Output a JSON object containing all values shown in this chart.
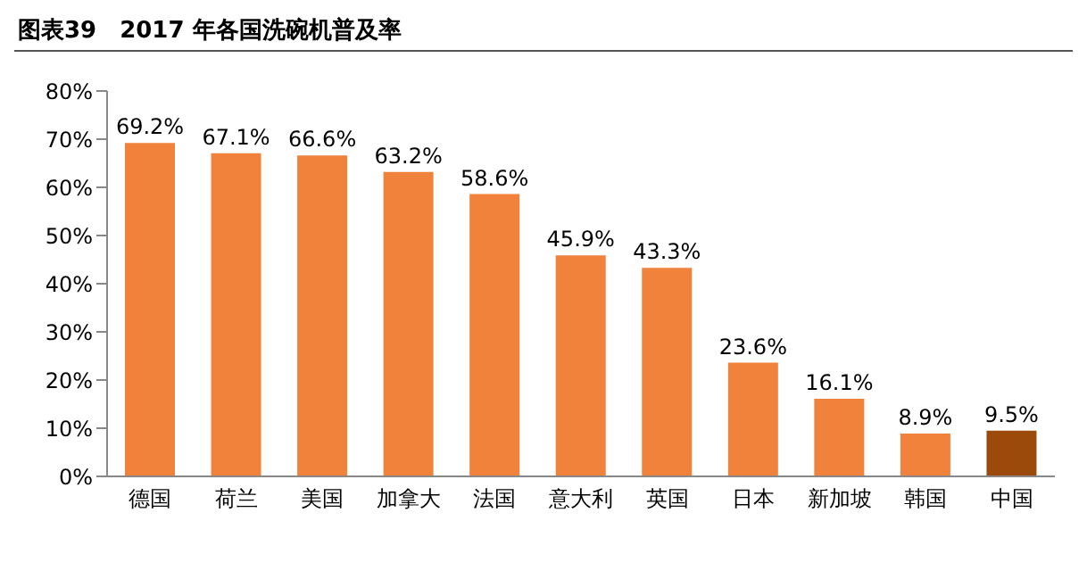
{
  "chart_data": {
    "type": "bar",
    "title": "图表39　2017 年各国洗碗机普及率",
    "categories": [
      "德国",
      "荷兰",
      "美国",
      "加拿大",
      "法国",
      "意大利",
      "英国",
      "日本",
      "新加坡",
      "韩国",
      "中国"
    ],
    "values": [
      69.2,
      67.1,
      66.6,
      63.2,
      58.6,
      45.9,
      43.3,
      23.6,
      16.1,
      8.9,
      9.5
    ],
    "colors": [
      "#f0823c",
      "#f0823c",
      "#f0823c",
      "#f0823c",
      "#f0823c",
      "#f0823c",
      "#f0823c",
      "#f0823c",
      "#f0823c",
      "#f0823c",
      "#9c4a0c"
    ],
    "value_labels": [
      "69.2%",
      "67.1%",
      "66.6%",
      "63.2%",
      "58.6%",
      "45.9%",
      "43.3%",
      "23.6%",
      "16.1%",
      "8.9%",
      "9.5%"
    ],
    "ylim": [
      0,
      80
    ],
    "yticks": [
      {
        "value": 0,
        "label": "0%"
      },
      {
        "value": 10,
        "label": "10%"
      },
      {
        "value": 20,
        "label": "20%"
      },
      {
        "value": 30,
        "label": "30%"
      },
      {
        "value": 40,
        "label": "40%"
      },
      {
        "value": 50,
        "label": "50%"
      },
      {
        "value": 60,
        "label": "60%"
      },
      {
        "value": 70,
        "label": "70%"
      },
      {
        "value": 80,
        "label": "80%"
      }
    ],
    "grid": false,
    "legend": false
  }
}
